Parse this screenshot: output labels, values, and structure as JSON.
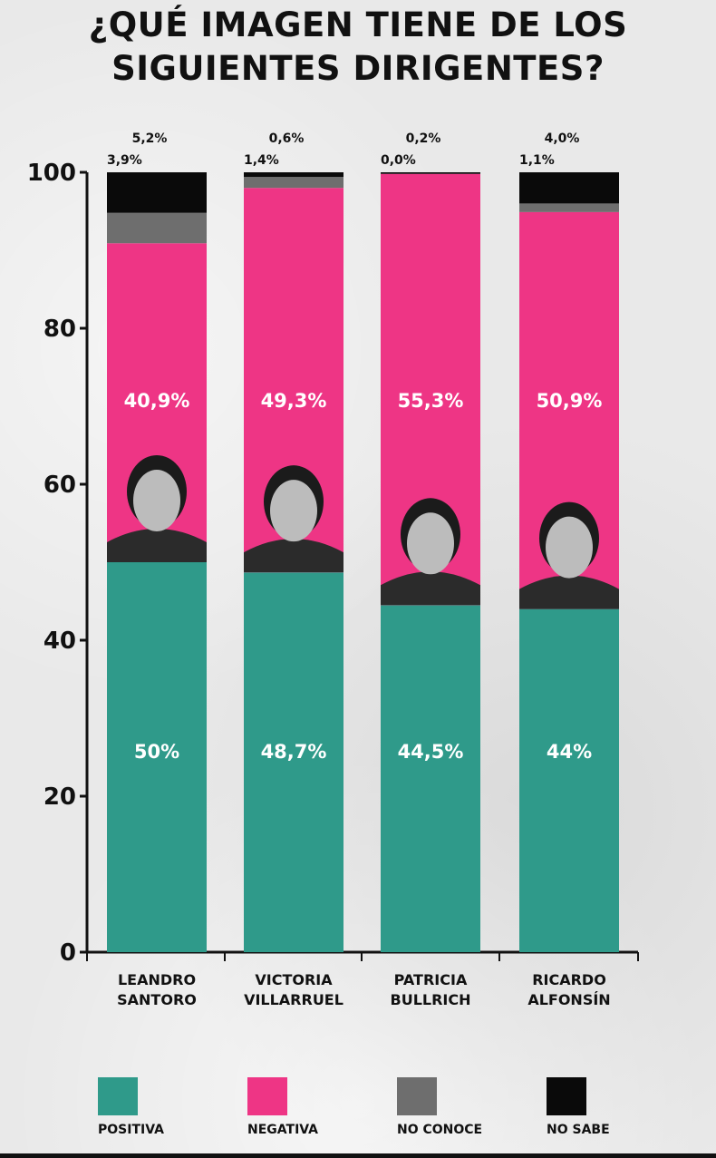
{
  "title": {
    "line1": "¿QUÉ IMAGEN TIENE DE LOS",
    "line2": "SIGUIENTES DIRIGENTES?"
  },
  "chart_data": {
    "type": "bar",
    "stacked": true,
    "ylim": [
      0,
      100
    ],
    "yticks": [
      "0",
      "20",
      "40",
      "60",
      "80",
      "100"
    ],
    "categories": [
      [
        "LEANDRO",
        "SANTORO"
      ],
      [
        "VICTORIA",
        "VILLARRUEL"
      ],
      [
        "PATRICIA",
        "BULLRICH"
      ],
      [
        "RICARDO",
        "ALFONSÍN"
      ]
    ],
    "series": [
      {
        "name": "POSITIVA",
        "color": "#2f9a8a",
        "values": [
          50,
          48.7,
          44.5,
          44
        ],
        "labels": [
          "50%",
          "48,7%",
          "44,5%",
          "44%"
        ]
      },
      {
        "name": "NEGATIVA",
        "color": "#ee3585",
        "values": [
          40.9,
          49.3,
          55.3,
          50.9
        ],
        "labels": [
          "40,9%",
          "49,3%",
          "55,3%",
          "50,9%"
        ]
      },
      {
        "name": "NO CONOCE",
        "color": "#6e6e6e",
        "values": [
          3.9,
          1.4,
          0.0,
          1.1
        ],
        "labels": [
          "3,9%",
          "1,4%",
          "0,0%",
          "1,1%"
        ]
      },
      {
        "name": "NO SABE",
        "color": "#0a0a0a",
        "values": [
          5.2,
          0.6,
          0.2,
          4.0
        ],
        "labels": [
          "5,2%",
          "0,6%",
          "0,2%",
          "4,0%"
        ]
      }
    ],
    "legend_position": "bottom",
    "grid": false
  }
}
